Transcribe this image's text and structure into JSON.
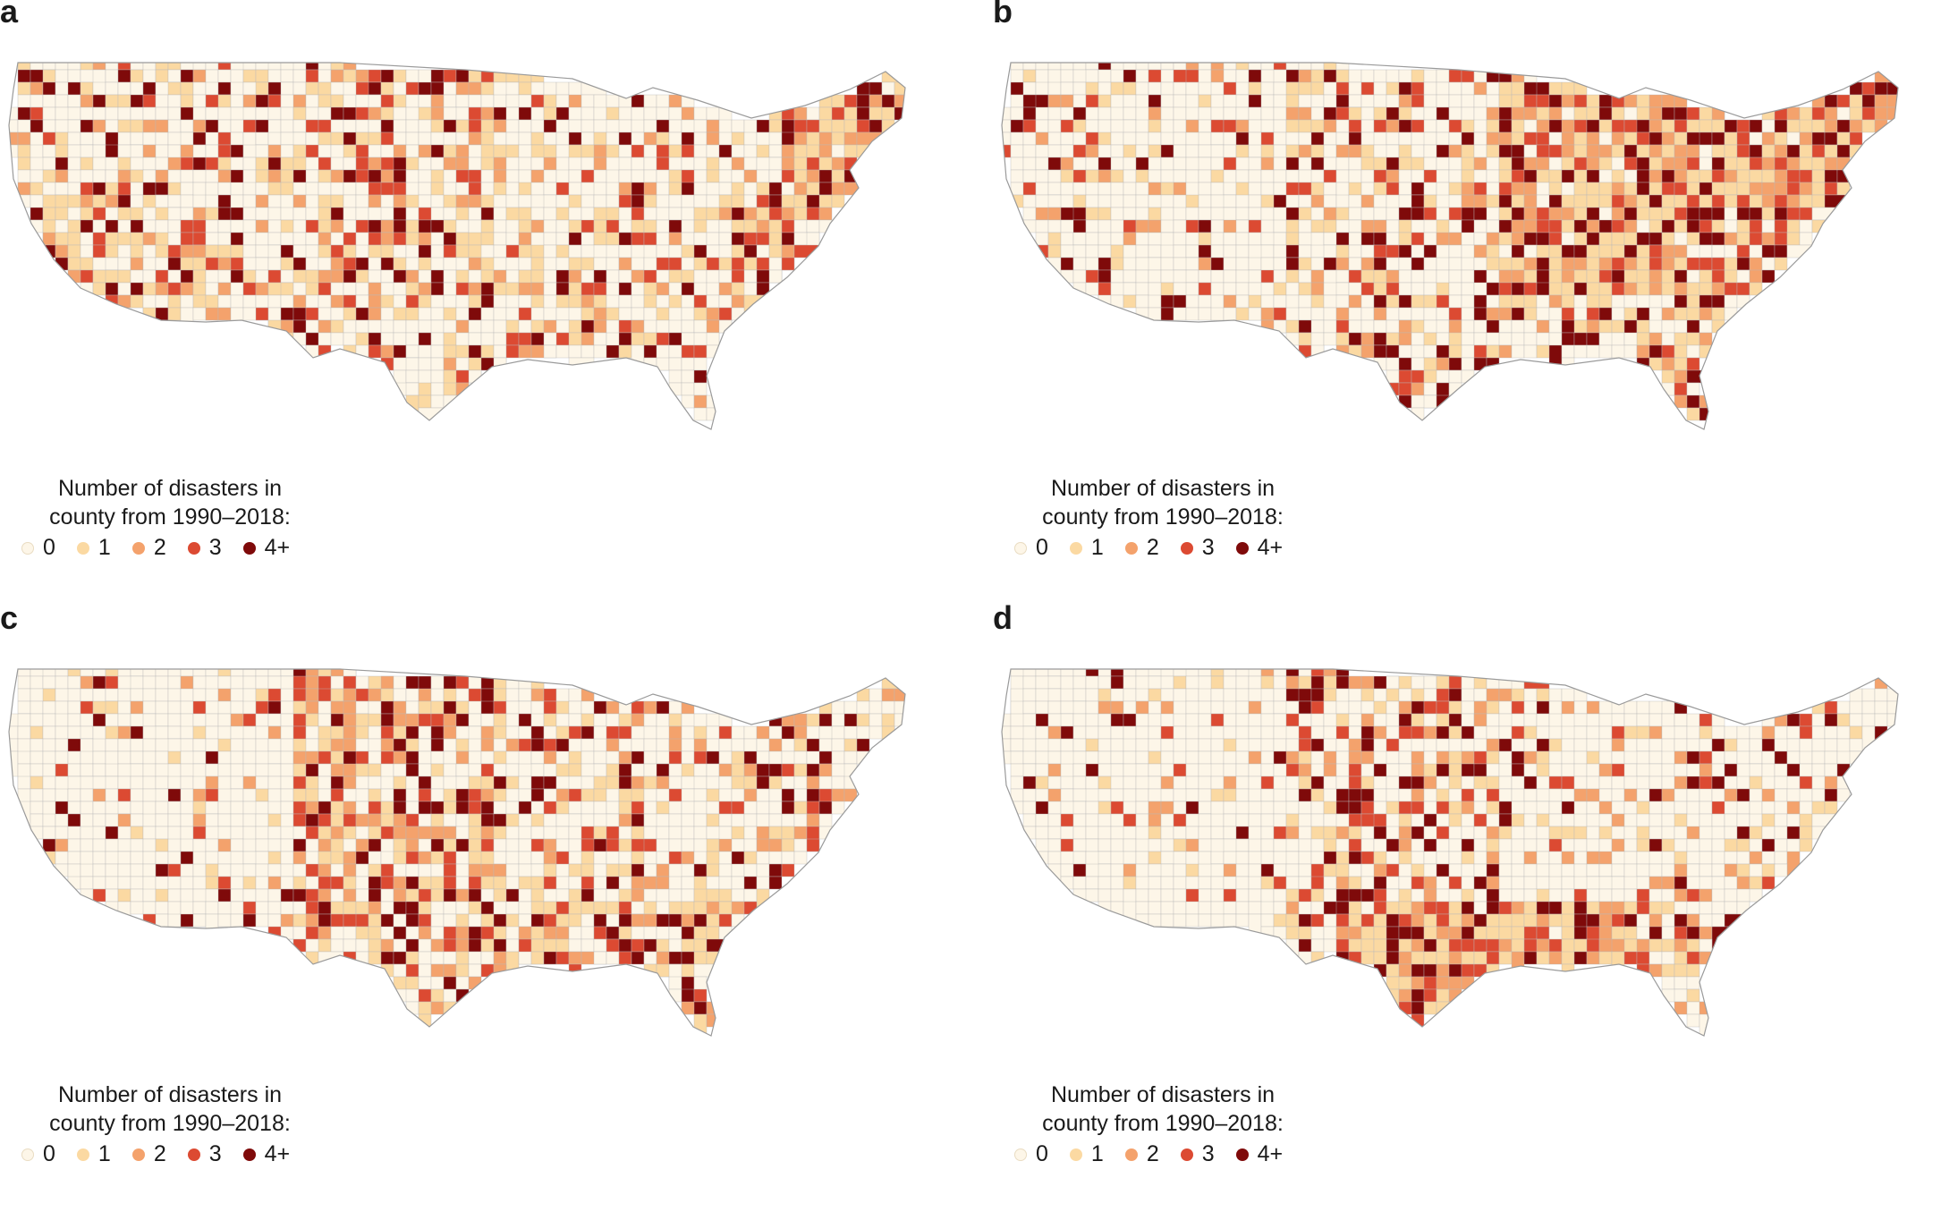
{
  "colors": {
    "c0": "#fdf6e8",
    "c1": "#fbd9a2",
    "c2": "#f4a26c",
    "c3": "#dc4a32",
    "c4": "#7f0a0a",
    "border": "#b9b9b9"
  },
  "panels": [
    {
      "label": "a",
      "legend": {
        "title_line1": "Number of disasters in",
        "title_line2": "county from 1990–2018:",
        "categories": [
          "0",
          "1",
          "2",
          "3",
          "4+"
        ]
      },
      "intensity": {
        "west": 0.35,
        "plains": 0.55,
        "midwest": 0.4,
        "south": 0.45,
        "east": 0.55,
        "northeast": 0.8,
        "southwest": 0.6,
        "gulf": 0.35,
        "florida": 0.45
      }
    },
    {
      "label": "b",
      "legend": {
        "title_line1": "Number of disasters in",
        "title_line2": "county from 1990–2018:",
        "categories": [
          "0",
          "1",
          "2",
          "3",
          "4+"
        ]
      },
      "intensity": {
        "west": 0.25,
        "plains": 0.45,
        "midwest": 0.85,
        "south": 0.85,
        "east": 0.75,
        "northeast": 0.85,
        "southwest": 0.3,
        "gulf": 0.5,
        "florida": 0.7
      }
    },
    {
      "label": "c",
      "legend": {
        "title_line1": "Number of disasters in",
        "title_line2": "county from 1990–2018:",
        "categories": [
          "0",
          "1",
          "2",
          "3",
          "4+"
        ]
      },
      "intensity": {
        "west": 0.15,
        "plains": 0.6,
        "midwest": 0.5,
        "south": 0.45,
        "east": 0.45,
        "northeast": 0.35,
        "southwest": 0.15,
        "gulf": 0.6,
        "florida": 0.65
      }
    },
    {
      "label": "d",
      "legend": {
        "title_line1": "Number of disasters in",
        "title_line2": "county from 1990–2018:",
        "categories": [
          "0",
          "1",
          "2",
          "3",
          "4+"
        ]
      },
      "intensity": {
        "west": 0.12,
        "plains": 0.5,
        "midwest": 0.25,
        "south": 0.18,
        "east": 0.3,
        "northeast": 0.2,
        "southwest": 0.1,
        "gulf": 0.9,
        "florida": 0.55
      }
    }
  ]
}
